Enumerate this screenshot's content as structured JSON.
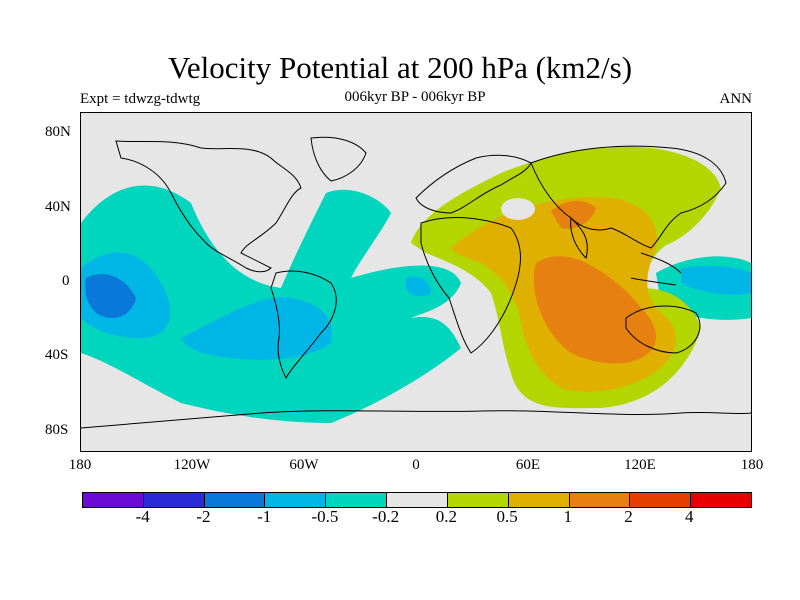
{
  "header": {
    "title": "Velocity Potential at 200 hPa (km2/s)",
    "left_label": "Expt = tdwzg-tdwtg",
    "center_label": "006kyr BP - 006kyr BP",
    "right_label": "ANN"
  },
  "map": {
    "projection": "cylindrical-equidistant",
    "lon_range": [
      180,
      -180
    ],
    "lat_range": [
      -90,
      90
    ],
    "x_ticks": [
      "180",
      "120W",
      "60W",
      "0",
      "60E",
      "120E",
      "180"
    ],
    "y_ticks": [
      "80N",
      "40N",
      "0",
      "40S",
      "80S"
    ],
    "background_color": "#e6e6e6",
    "coastline_color": "#000000"
  },
  "colorbar": {
    "colors": [
      "#6a0cd6",
      "#2a2ad6",
      "#0a78d8",
      "#00b6e6",
      "#00d6be",
      "#e6e6e6",
      "#b4d600",
      "#e0b000",
      "#e68010",
      "#e64000",
      "#e60000"
    ],
    "labels": [
      "-4",
      "-2",
      "-1",
      "-0.5",
      "-0.2",
      "0.2",
      "0.5",
      "1",
      "2",
      "4"
    ]
  }
}
